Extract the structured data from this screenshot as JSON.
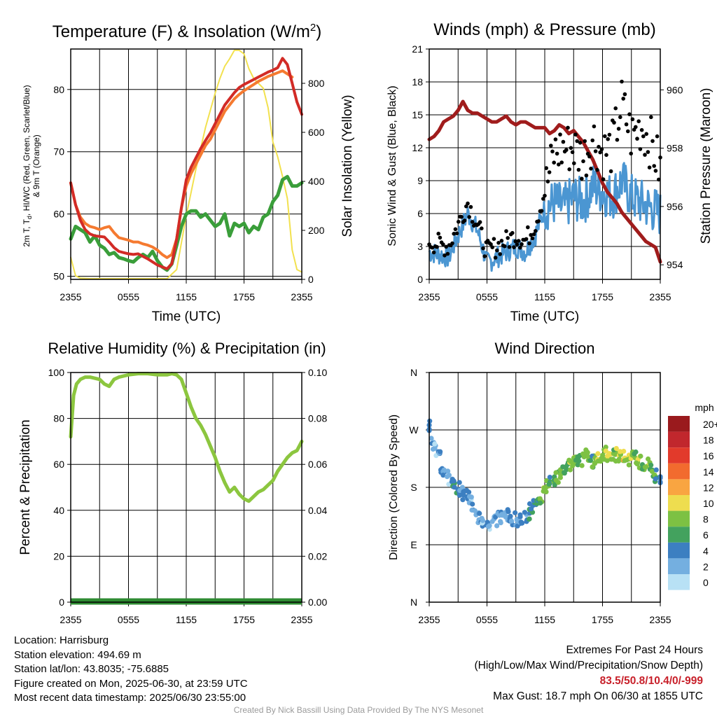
{
  "chart_data": [
    {
      "type": "line",
      "title": "Temperature (F) & Insolation (W/m",
      "title_sup": "2",
      "title_close": ")",
      "xlabel": "Time (UTC)",
      "ylabel": [
        "2m T, T",
        "d",
        ", HI/WC (Red, Green, Scarlet/Blue)",
        "& 9m T (Orange)"
      ],
      "ylabel_right": "Solar Insolation (Yellow)",
      "x_ticks": [
        "2355",
        "0555",
        "1155",
        "1755",
        "2355"
      ],
      "y_ticks": [
        "50",
        "60",
        "70",
        "80"
      ],
      "y_right_ticks": [
        "0",
        "200",
        "400",
        "600",
        "800"
      ],
      "ylim": [
        49.5,
        86.5
      ],
      "ylim_right": [
        0,
        940
      ],
      "xlim": [
        0,
        24
      ],
      "grid": true,
      "series": [
        {
          "name": "Red",
          "axis": "left",
          "color": "#d22b26",
          "x": [
            0,
            0.5,
            1,
            1.5,
            2,
            2.5,
            3,
            3.5,
            4,
            4.5,
            5,
            5.5,
            6,
            6.5,
            7,
            7.5,
            8,
            8.5,
            9,
            9.5,
            10,
            10.5,
            11,
            11.5,
            12,
            12.5,
            13,
            13.5,
            14,
            14.5,
            15,
            15.5,
            16,
            16.5,
            17,
            17.5,
            18,
            18.5,
            19,
            19.5,
            20,
            20.5,
            21,
            21.5,
            22,
            22.5,
            23,
            23.5,
            24
          ],
          "y": [
            65,
            61.5,
            59,
            57.5,
            56.8,
            56.5,
            56.4,
            56.3,
            55.5,
            54.6,
            54,
            53.8,
            53.6,
            53.5,
            53.6,
            53.2,
            52.8,
            52.3,
            51.8,
            51.5,
            51.2,
            52,
            56,
            61,
            65.5,
            67.5,
            69,
            70.5,
            71.8,
            73,
            74.5,
            76,
            77.5,
            78.5,
            79.5,
            80.3,
            80.8,
            81.2,
            81.6,
            82,
            82.4,
            82.8,
            83.1,
            83.5,
            85,
            84,
            81,
            78,
            76
          ]
        },
        {
          "name": "Orange",
          "axis": "left",
          "color": "#f57a30",
          "x": [
            0,
            0.5,
            1,
            1.5,
            2,
            2.5,
            3,
            3.5,
            4,
            4.5,
            5,
            5.5,
            6,
            6.5,
            7,
            7.5,
            8,
            8.5,
            9,
            9.5,
            10,
            10.5,
            11,
            11.5,
            12,
            12.5,
            13,
            13.5,
            14,
            14.5,
            15,
            15.5,
            16,
            16.5,
            17,
            17.5,
            18,
            18.5,
            19,
            19.5,
            20,
            20.5,
            21,
            21.5,
            22,
            22.5,
            23
          ],
          "y": [
            65,
            61.5,
            59.5,
            58.5,
            58,
            57.8,
            57.5,
            57.8,
            58,
            57,
            56.2,
            56,
            55.8,
            55.5,
            55.5,
            55.2,
            55,
            54.7,
            54.2,
            53.5,
            53,
            53.5,
            56,
            61,
            64.5,
            66.5,
            68,
            69.5,
            71,
            72,
            73.5,
            75,
            76.5,
            77.5,
            78.5,
            79.2,
            79.8,
            80.3,
            80.8,
            81.3,
            81.7,
            82.1,
            82.4,
            82.7,
            83,
            82.5,
            82
          ]
        },
        {
          "name": "Green",
          "axis": "left",
          "color": "#3a9e3a",
          "x": [
            0,
            0.5,
            1,
            1.5,
            2,
            2.5,
            3,
            3.5,
            4,
            4.5,
            5,
            5.5,
            6,
            6.5,
            7,
            7.5,
            8,
            8.5,
            9,
            9.5,
            10,
            10.5,
            11,
            11.5,
            12,
            12.5,
            13,
            13.5,
            14,
            14.5,
            15,
            15.5,
            16,
            16.5,
            17,
            17.5,
            18,
            18.5,
            19,
            19.5,
            20,
            20.5,
            21,
            21.5,
            22,
            22.5,
            23,
            23.5,
            24
          ],
          "y": [
            56,
            58,
            57.5,
            57,
            55.5,
            56.5,
            55,
            54.5,
            53.5,
            53.8,
            53,
            52.8,
            52.5,
            52.3,
            53,
            53.5,
            53,
            54,
            52.5,
            51.5,
            51,
            52,
            55,
            58,
            60,
            60.5,
            60.5,
            59.5,
            60,
            59,
            58,
            58.5,
            60,
            56.5,
            58.5,
            58,
            58.5,
            57,
            58,
            57.5,
            59.5,
            60,
            62,
            63,
            65.5,
            66,
            64.5,
            64.5,
            65
          ]
        },
        {
          "name": "Yellow",
          "axis": "right",
          "color": "#f2e14f",
          "x": [
            0,
            0.5,
            1,
            2,
            3,
            4,
            5,
            6,
            7,
            8,
            9,
            10,
            11,
            11.5,
            12,
            13,
            14,
            15,
            15.5,
            16,
            16.5,
            17,
            17.5,
            18,
            18.5,
            19,
            19.5,
            20,
            20.5,
            21,
            21.5,
            22,
            22.5,
            23,
            23.5,
            24
          ],
          "y": [
            90,
            15,
            5,
            3,
            3,
            3,
            3,
            3,
            3,
            3,
            3,
            3,
            40,
            150,
            260,
            450,
            620,
            760,
            820,
            870,
            900,
            935,
            935,
            920,
            860,
            820,
            800,
            780,
            700,
            560,
            500,
            420,
            330,
            120,
            40,
            30
          ]
        }
      ]
    },
    {
      "type": "line",
      "title": "Winds (mph) & Pressure (mb)",
      "xlabel": "Time (UTC)",
      "ylabel": "Sonic Wind & Gust (Blue, Black)",
      "ylabel_right": "Station Pressure (Maroon)",
      "x_ticks": [
        "2355",
        "0555",
        "1155",
        "1755",
        "2355"
      ],
      "y_ticks": [
        "0",
        "3",
        "6",
        "9",
        "12",
        "15",
        "18",
        "21"
      ],
      "y_right_ticks": [
        "954",
        "956",
        "958",
        "960"
      ],
      "ylim": [
        0,
        21
      ],
      "ylim_right": [
        953.5,
        961.4
      ],
      "xlim": [
        0,
        24
      ],
      "grid": true,
      "series": [
        {
          "name": "Blue",
          "axis": "left",
          "color": "#4b96d2",
          "x": [
            0,
            1,
            2,
            3,
            4,
            5,
            6,
            7,
            8,
            9,
            10,
            11,
            12,
            13,
            14,
            15,
            16,
            17,
            18,
            19,
            20,
            21,
            22,
            23,
            24
          ],
          "y": [
            2.5,
            2.3,
            2,
            4,
            6,
            4.5,
            1.5,
            2,
            2.5,
            3,
            2.5,
            4,
            6.5,
            7,
            6.5,
            7.5,
            7,
            8.5,
            8,
            7.5,
            9,
            7.5,
            7,
            6.5,
            6
          ]
        },
        {
          "name": "Black",
          "axis": "left",
          "color": "#000000",
          "x": [
            0,
            1,
            2,
            3,
            4,
            5,
            6,
            7,
            8,
            9,
            10,
            11,
            12,
            13,
            14,
            15,
            16,
            17,
            18,
            19,
            20,
            21,
            22,
            23,
            24
          ],
          "y": [
            3.5,
            3.2,
            3,
            5,
            7,
            5,
            2.5,
            3,
            3.5,
            4,
            3.5,
            5,
            8,
            11.5,
            12,
            12,
            11,
            13,
            11.5,
            12,
            16,
            13,
            14,
            12.5,
            10
          ]
        },
        {
          "name": "Maroon",
          "axis": "right",
          "color": "#a01c1c",
          "x": [
            0,
            0.5,
            1,
            1.5,
            2,
            2.5,
            3,
            3.5,
            4,
            4.5,
            5,
            5.5,
            6,
            6.5,
            7,
            7.5,
            8,
            8.5,
            9,
            9.5,
            10,
            10.5,
            11,
            11.5,
            12,
            12.5,
            13,
            13.5,
            14,
            14.5,
            15,
            15.5,
            16,
            16.5,
            17,
            17.5,
            18,
            18.5,
            19,
            19.5,
            20,
            20.5,
            21,
            21.5,
            22,
            22.5,
            23,
            23.5,
            24
          ],
          "y": [
            958.3,
            958.4,
            958.6,
            958.9,
            959,
            959.1,
            959.3,
            959.6,
            959.3,
            959.2,
            959.2,
            959.1,
            959,
            958.9,
            958.9,
            959,
            959.1,
            958.9,
            958.8,
            958.9,
            958.9,
            958.8,
            958.7,
            958.7,
            958.7,
            958.5,
            958.6,
            958.8,
            958.7,
            958.5,
            958.6,
            958.4,
            958.2,
            957.9,
            957.6,
            957.2,
            956.8,
            956.5,
            956.3,
            956.1,
            955.8,
            955.6,
            955.4,
            955.2,
            955,
            954.8,
            954.7,
            954.6,
            954.1
          ]
        }
      ]
    },
    {
      "type": "line",
      "title": "Relative Humidity (%) & Precipitation (in)",
      "ylabel": "Percent & Precipitation",
      "x_ticks": [
        "2355",
        "0555",
        "1155",
        "1755",
        "2355"
      ],
      "y_ticks": [
        "0",
        "20",
        "40",
        "60",
        "80",
        "100"
      ],
      "y_right_ticks": [
        "0.00",
        "0.02",
        "0.04",
        "0.06",
        "0.08",
        "0.10"
      ],
      "ylim": [
        0,
        100
      ],
      "ylim_right": [
        0,
        0.1
      ],
      "xlim": [
        0,
        24
      ],
      "grid": true,
      "series": [
        {
          "name": "Light Green",
          "axis": "left",
          "color": "#8cc63f",
          "x": [
            0,
            0.3,
            0.6,
            1,
            1.5,
            2,
            2.5,
            3,
            3.5,
            4,
            4.5,
            5,
            6,
            7,
            8,
            9,
            10,
            10.5,
            11,
            11.5,
            12,
            12.5,
            13,
            13.5,
            14,
            14.5,
            15,
            15.5,
            16,
            16.5,
            17,
            17.5,
            18,
            18.5,
            19,
            19.5,
            20,
            20.5,
            21,
            21.5,
            22,
            22.5,
            23,
            23.5,
            24
          ],
          "y": [
            72,
            90,
            95,
            97,
            98,
            98,
            97.5,
            97,
            95,
            94,
            97,
            98,
            99,
            99.5,
            99.5,
            99,
            99,
            99.5,
            99,
            97,
            91,
            85,
            80,
            77,
            73,
            68,
            63,
            57,
            52,
            48,
            50,
            47,
            45,
            44,
            46,
            48,
            49,
            51,
            53,
            57,
            60,
            63,
            65,
            66,
            70
          ]
        },
        {
          "name": "Dark Green",
          "axis": "right",
          "color": "#2e8b32",
          "x": [
            0,
            24
          ],
          "y": [
            0,
            0
          ]
        }
      ]
    },
    {
      "type": "scatter",
      "title": "Wind Direction",
      "ylabel": "Direction (Colored By Speed)",
      "x_ticks": [
        "2355",
        "0555",
        "1155",
        "1755",
        "2355"
      ],
      "y_ticks": [
        "N",
        "E",
        "S",
        "W",
        "N"
      ],
      "ylim": [
        0,
        360
      ],
      "xlim": [
        0,
        24
      ],
      "grid": true,
      "legend_title": "mph",
      "legend_labels": [
        "20+",
        "18",
        "16",
        "14",
        "12",
        "10",
        "8",
        "6",
        "4",
        "2",
        "0"
      ],
      "legend_colors": [
        "#9a1a1d",
        "#c1272d",
        "#e23a2b",
        "#f26b2e",
        "#f9a541",
        "#eedd4f",
        "#7dc143",
        "#43a25e",
        "#3c7fc1",
        "#74afe0",
        "#b8e1f5"
      ],
      "x": [
        0,
        0.3,
        0.6,
        1,
        1.3,
        1.6,
        2,
        2.3,
        2.6,
        3,
        3.3,
        3.6,
        4,
        4.3,
        4.6,
        5,
        5.3,
        5.6,
        6,
        6.3,
        6.6,
        7,
        7.3,
        7.6,
        8,
        8.3,
        8.6,
        9,
        9.3,
        9.6,
        10,
        10.3,
        10.6,
        11,
        11.3,
        11.6,
        12,
        12.3,
        12.6,
        13,
        13.3,
        13.6,
        14,
        14.3,
        14.6,
        15,
        15.3,
        15.6,
        16,
        16.3,
        16.6,
        17,
        17.3,
        17.6,
        18,
        18.3,
        18.6,
        19,
        19.3,
        19.6,
        20,
        20.3,
        20.6,
        21,
        21.3,
        21.6,
        22,
        22.3,
        22.6,
        23,
        23.3,
        23.6,
        24
      ],
      "y": [
        275,
        250,
        240,
        230,
        210,
        200,
        195,
        190,
        185,
        180,
        175,
        170,
        168,
        165,
        150,
        135,
        130,
        128,
        125,
        125,
        128,
        130,
        133,
        135,
        135,
        138,
        132,
        130,
        128,
        132,
        135,
        140,
        145,
        150,
        155,
        165,
        175,
        180,
        185,
        190,
        195,
        200,
        205,
        210,
        215,
        218,
        220,
        222,
        225,
        228,
        225,
        222,
        228,
        230,
        230,
        232,
        228,
        225,
        230,
        232,
        228,
        230,
        225,
        230,
        228,
        222,
        220,
        215,
        215,
        210,
        205,
        200,
        195
      ],
      "s": [
        4,
        3,
        2,
        3,
        4,
        3,
        2,
        4,
        5,
        4,
        3,
        4,
        3,
        2,
        3,
        2,
        3,
        2,
        3,
        2,
        2,
        3,
        2,
        3,
        2,
        3,
        2,
        3,
        4,
        3,
        4,
        5,
        4,
        5,
        6,
        7,
        8,
        7,
        6,
        7,
        8,
        7,
        6,
        7,
        8,
        9,
        7,
        6,
        8,
        9,
        7,
        6,
        8,
        9,
        8,
        9,
        10,
        9,
        8,
        9,
        10,
        9,
        8,
        9,
        7,
        8,
        9,
        7,
        8,
        6,
        7,
        5,
        4
      ]
    }
  ],
  "footer": {
    "location": "Location: Harrisburg",
    "elevation": "Station elevation: 494.69 m",
    "latlon": "Station lat/lon: 43.8035; -75.6885",
    "created": "Figure created on Mon, 2025-06-30, at 23:59 UTC",
    "recent": "Most recent data timestamp: 2025/06/30 23:55:00",
    "extremes_title": "Extremes For Past 24 Hours",
    "extremes_fields": "(High/Low/Max Wind/Precipitation/Snow Depth)",
    "extremes_values": "83.5/50.8/10.4/0/-999",
    "max_gust": "Max Gust: 18.7 mph On 06/30 at 1855 UTC",
    "credit": "Created By Nick Bassill Using Data Provided By The NYS Mesonet"
  }
}
